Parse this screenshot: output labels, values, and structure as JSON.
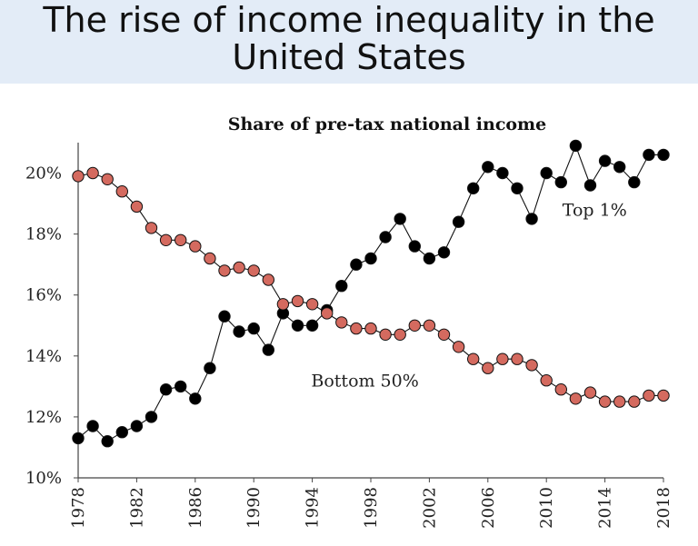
{
  "slide": {
    "title_line1": "The rise of income inequality in the",
    "title_line2": "United States"
  },
  "chart_data": {
    "type": "line",
    "title": "Share of pre-tax national income",
    "xlabel": "",
    "ylabel": "",
    "xlim": [
      1978,
      2018
    ],
    "ylim": [
      10,
      21
    ],
    "y_ticks": [
      10,
      12,
      14,
      16,
      18,
      20
    ],
    "y_tick_labels": [
      "10%",
      "12%",
      "14%",
      "16%",
      "18%",
      "20%"
    ],
    "x_ticks": [
      1978,
      1982,
      1986,
      1990,
      1994,
      1998,
      2002,
      2006,
      2010,
      2014,
      2018
    ],
    "x_tick_labels": [
      "1978",
      "1982",
      "1986",
      "1990",
      "1994",
      "1998",
      "2002",
      "2006",
      "2010",
      "2014",
      "2018"
    ],
    "grid": false,
    "x": [
      1978,
      1979,
      1980,
      1981,
      1982,
      1983,
      1984,
      1985,
      1986,
      1987,
      1988,
      1989,
      1990,
      1991,
      1992,
      1993,
      1994,
      1995,
      1996,
      1997,
      1998,
      1999,
      2000,
      2001,
      2002,
      2003,
      2004,
      2005,
      2006,
      2007,
      2008,
      2009,
      2010,
      2011,
      2012,
      2013,
      2014,
      2015,
      2016,
      2017,
      2018
    ],
    "series": [
      {
        "name": "Top 1%",
        "color": "#000000",
        "values": [
          11.3,
          11.7,
          11.2,
          11.5,
          11.7,
          12.0,
          12.9,
          13.0,
          12.6,
          13.6,
          15.3,
          14.8,
          14.9,
          14.2,
          15.4,
          15.0,
          15.0,
          15.5,
          16.3,
          17.0,
          17.2,
          17.9,
          18.5,
          17.6,
          17.2,
          17.4,
          18.4,
          19.5,
          20.2,
          20.0,
          19.5,
          18.5,
          20.0,
          19.7,
          20.9,
          19.6,
          20.4,
          20.2,
          19.7,
          20.6,
          20.6
        ]
      },
      {
        "name": "Bottom 50%",
        "color": "#d46a5f",
        "values": [
          19.9,
          20.0,
          19.8,
          19.4,
          18.9,
          18.2,
          17.8,
          17.8,
          17.6,
          17.2,
          16.8,
          16.9,
          16.8,
          16.5,
          15.7,
          15.8,
          15.7,
          15.4,
          15.1,
          14.9,
          14.9,
          14.7,
          14.7,
          15.0,
          15.0,
          14.7,
          14.3,
          13.9,
          13.6,
          13.9,
          13.9,
          13.7,
          13.2,
          12.9,
          12.6,
          12.8,
          12.5,
          12.5,
          12.5,
          12.7,
          12.7
        ]
      }
    ],
    "annotations": [
      {
        "text": "Top 1%",
        "x": 2013.3,
        "y": 18.6
      },
      {
        "text": "Bottom 50%",
        "x": 1997.6,
        "y": 13.0
      }
    ]
  }
}
